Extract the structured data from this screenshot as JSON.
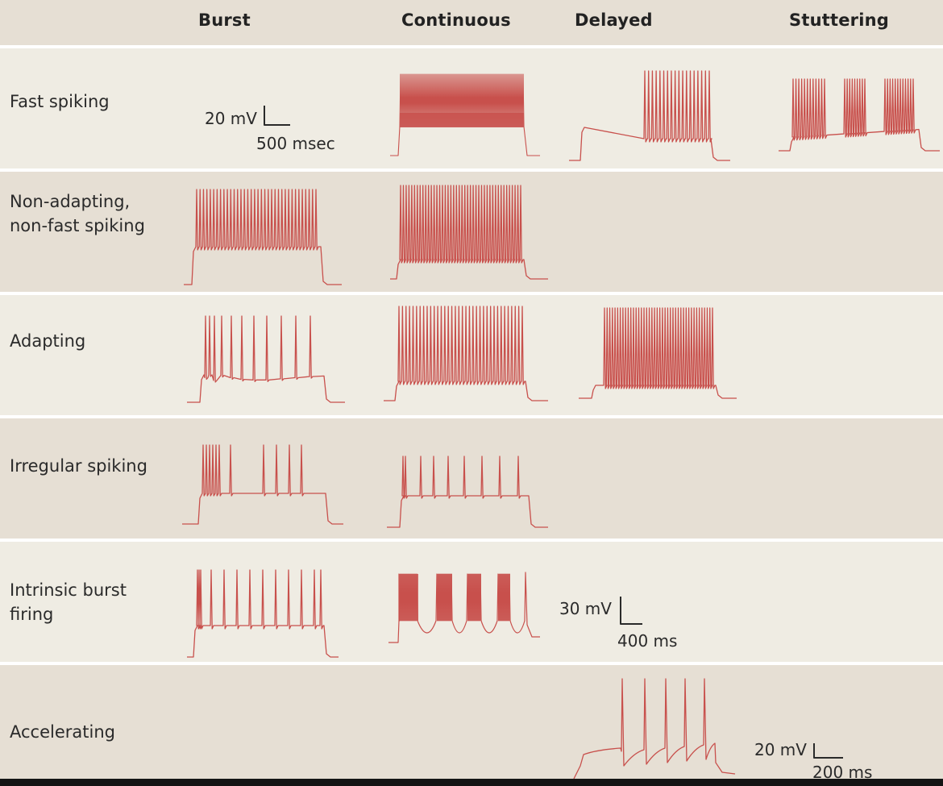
{
  "header": {
    "columns": [
      "Burst",
      "Continuous",
      "Delayed",
      "Stuttering"
    ]
  },
  "rows": [
    {
      "label": "Fast spiking"
    },
    {
      "label": "Non-adapting,\nnon-fast spiking"
    },
    {
      "label": "Adapting"
    },
    {
      "label": "Irregular spiking"
    },
    {
      "label": "Intrinsic burst\nfiring"
    },
    {
      "label": "Accelerating"
    }
  ],
  "scale_bars": [
    {
      "voltage": "20 mV",
      "time": "500 msec"
    },
    {
      "voltage": "30 mV",
      "time": "400 ms"
    },
    {
      "voltage": "20 mV",
      "time": "200 ms"
    }
  ],
  "colors": {
    "trace": "#c8504c",
    "band_light": "#efece3",
    "band_dark": "#e6dfd4",
    "header_band": "#e6dfd4",
    "separator": "#ffffff",
    "text": "#2a2a2a"
  }
}
